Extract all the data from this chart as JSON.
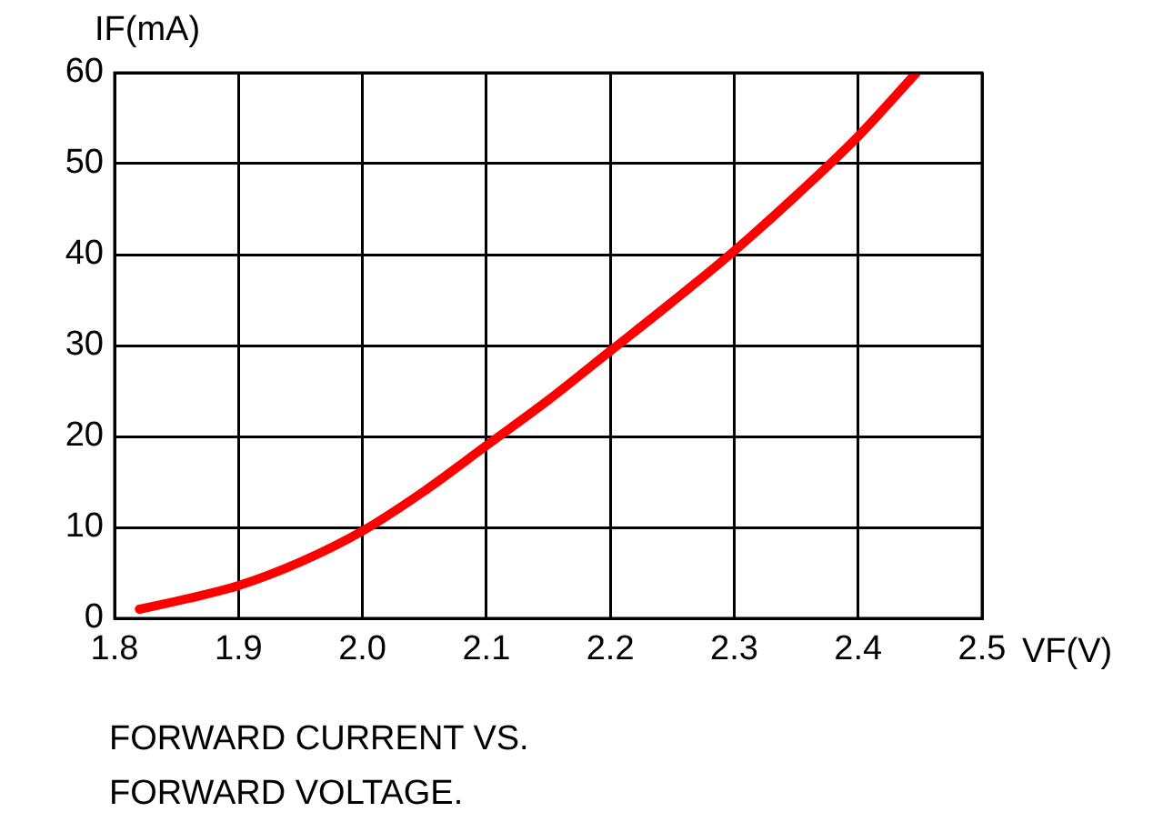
{
  "chart_data": {
    "type": "line",
    "xlabel": "VF(V)",
    "ylabel": "IF(mA)",
    "annotations": [
      "FORWARD CURRENT VS.",
      "FORWARD VOLTAGE."
    ],
    "x": [
      1.82,
      1.86,
      1.9,
      1.95,
      2.0,
      2.05,
      2.1,
      2.15,
      2.2,
      2.25,
      2.3,
      2.35,
      2.4,
      2.447
    ],
    "series": [
      {
        "color": "#ff0000",
        "values": [
          1,
          2.2,
          3.6,
          6.2,
          9.6,
          14,
          19,
          24,
          29.4,
          34.8,
          40.4,
          46.5,
          53,
          60
        ]
      }
    ],
    "xlim": [
      1.8,
      2.5
    ],
    "xticks": [
      1.8,
      1.9,
      {
        "value": 2,
        "label": "2.0"
      },
      2.1,
      2.2,
      2.3,
      2.4,
      2.5
    ],
    "ylim": [
      0,
      60
    ],
    "yticks": [
      0,
      10,
      20,
      30,
      40,
      50,
      60
    ],
    "grid": true,
    "legend": false,
    "marker": "none",
    "line_style": "solid"
  }
}
